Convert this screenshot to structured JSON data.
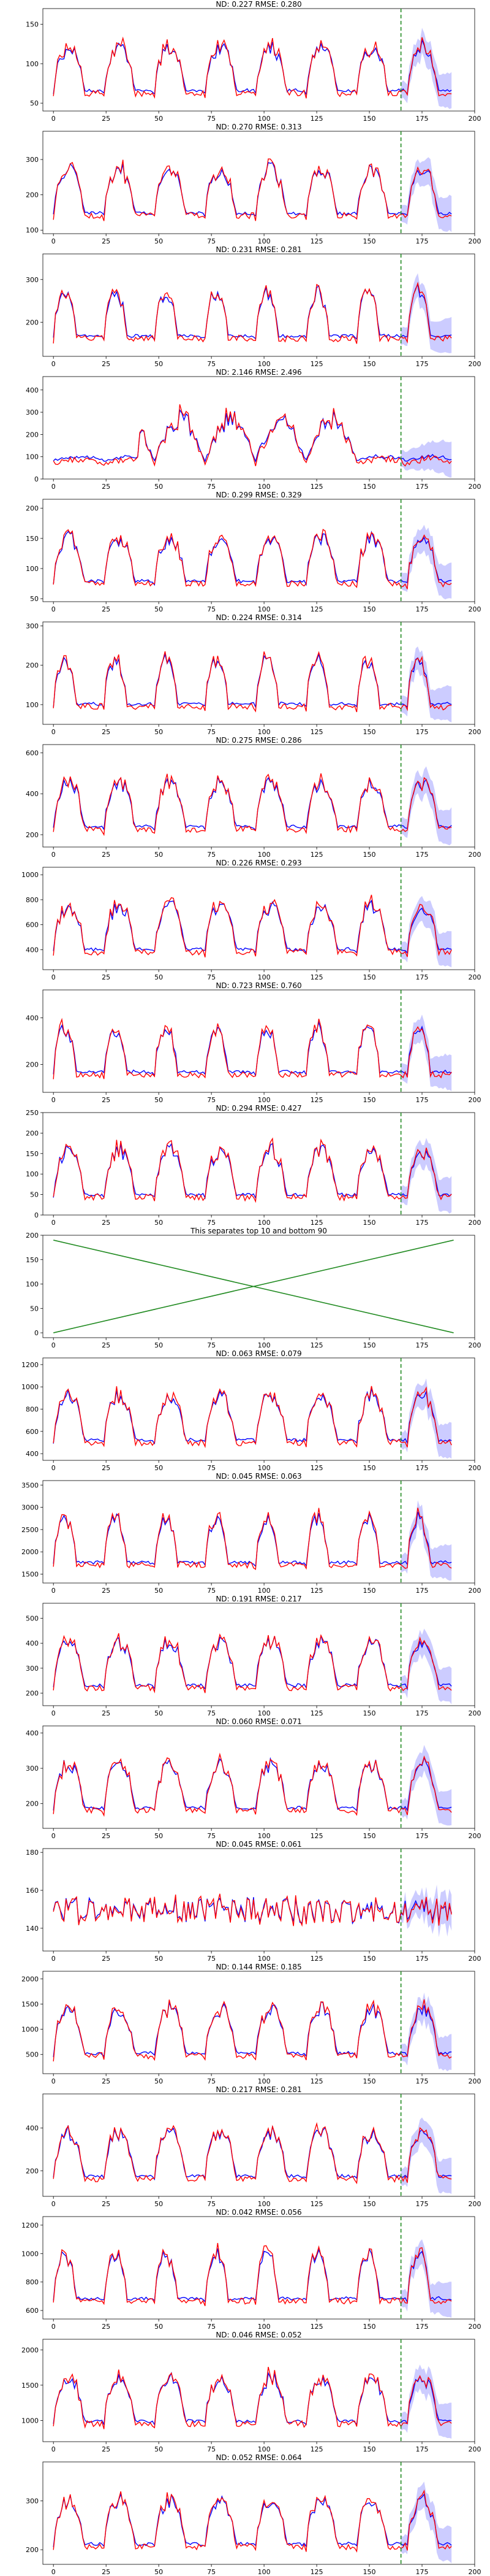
{
  "figure": {
    "x_ticks": [
      0,
      25,
      50,
      75,
      100,
      125,
      150,
      175,
      200
    ],
    "forecast_start": 165,
    "series_colors": {
      "prediction": "#0000ff",
      "actual": "#ff0000",
      "interval": "#aaaaff",
      "forecast_marker": "#228b22",
      "separator": "#228b22"
    }
  },
  "chart_data": [
    {
      "type": "line",
      "title": "ND:  0.227 RMSE:  0.280",
      "xlim": [
        -5,
        200
      ],
      "ylim": [
        40,
        170
      ],
      "yticks": [
        50,
        100,
        150
      ],
      "profile": 1
    },
    {
      "type": "line",
      "title": "ND:  0.270 RMSE:  0.313",
      "xlim": [
        -5,
        200
      ],
      "ylim": [
        90,
        380
      ],
      "yticks": [
        100,
        200,
        300
      ],
      "profile": 2
    },
    {
      "type": "line",
      "title": "ND:  0.231 RMSE:  0.281",
      "xlim": [
        -5,
        200
      ],
      "ylim": [
        120,
        360
      ],
      "yticks": [
        200,
        300
      ],
      "profile": 3
    },
    {
      "type": "line",
      "title": "ND:  2.146 RMSE:  2.496",
      "xlim": [
        -5,
        200
      ],
      "ylim": [
        0,
        460
      ],
      "yticks": [
        0,
        100,
        200,
        300,
        400
      ],
      "profile": 4
    },
    {
      "type": "line",
      "title": "ND:  0.299 RMSE:  0.329",
      "xlim": [
        -5,
        200
      ],
      "ylim": [
        45,
        215
      ],
      "yticks": [
        50,
        100,
        150,
        200
      ],
      "profile": 5
    },
    {
      "type": "line",
      "title": "ND:  0.224 RMSE:  0.314",
      "xlim": [
        -5,
        200
      ],
      "ylim": [
        50,
        310
      ],
      "yticks": [
        100,
        200,
        300
      ],
      "profile": 6
    },
    {
      "type": "line",
      "title": "ND:  0.275 RMSE:  0.286",
      "xlim": [
        -5,
        200
      ],
      "ylim": [
        140,
        640
      ],
      "yticks": [
        200,
        400,
        600
      ],
      "profile": 7
    },
    {
      "type": "line",
      "title": "ND:  0.226 RMSE:  0.293",
      "xlim": [
        -5,
        200
      ],
      "ylim": [
        240,
        1060
      ],
      "yticks": [
        400,
        600,
        800,
        1000
      ],
      "profile": 8
    },
    {
      "type": "line",
      "title": "ND:  0.723 RMSE:  0.760",
      "xlim": [
        -5,
        200
      ],
      "ylim": [
        80,
        520
      ],
      "yticks": [
        200,
        400
      ],
      "profile": 9
    },
    {
      "type": "line",
      "title": "ND:  0.294 RMSE:  0.427",
      "xlim": [
        -5,
        200
      ],
      "ylim": [
        0,
        250
      ],
      "yticks": [
        0,
        50,
        100,
        150,
        200,
        250
      ],
      "profile": 10
    },
    {
      "type": "line",
      "title": "This separates top 10 and bottom 90",
      "xlim": [
        -5,
        200
      ],
      "ylim": [
        -10,
        200
      ],
      "yticks": [
        0,
        50,
        100,
        150,
        200
      ],
      "separator": true
    },
    {
      "type": "line",
      "title": "ND:  0.063 RMSE:  0.079",
      "xlim": [
        -5,
        200
      ],
      "ylim": [
        340,
        1260
      ],
      "yticks": [
        400,
        600,
        800,
        1000,
        1200
      ],
      "profile": 11
    },
    {
      "type": "line",
      "title": "ND:  0.045 RMSE:  0.063",
      "xlim": [
        -5,
        200
      ],
      "ylim": [
        1300,
        3600
      ],
      "yticks": [
        1500,
        2000,
        2500,
        3000,
        3500
      ],
      "profile": 12
    },
    {
      "type": "line",
      "title": "ND:  0.191 RMSE:  0.217",
      "xlim": [
        -5,
        200
      ],
      "ylim": [
        150,
        560
      ],
      "yticks": [
        200,
        300,
        400,
        500
      ],
      "profile": 13
    },
    {
      "type": "line",
      "title": "ND:  0.060 RMSE:  0.071",
      "xlim": [
        -5,
        200
      ],
      "ylim": [
        130,
        420
      ],
      "yticks": [
        200,
        300,
        400
      ],
      "profile": 14
    },
    {
      "type": "line",
      "title": "ND:  0.045 RMSE:  0.061",
      "xlim": [
        -5,
        200
      ],
      "ylim": [
        128,
        182
      ],
      "yticks": [
        140,
        160,
        180
      ],
      "profile": 15
    },
    {
      "type": "line",
      "title": "ND:  0.144 RMSE:  0.185",
      "xlim": [
        -5,
        200
      ],
      "ylim": [
        120,
        2150
      ],
      "yticks": [
        500,
        1000,
        1500,
        2000
      ],
      "profile": 16
    },
    {
      "type": "line",
      "title": "ND:  0.217 RMSE:  0.281",
      "xlim": [
        -5,
        200
      ],
      "ylim": [
        80,
        560
      ],
      "yticks": [
        200,
        400
      ],
      "profile": 17
    },
    {
      "type": "line",
      "title": "ND:  0.042 RMSE:  0.056",
      "xlim": [
        -5,
        200
      ],
      "ylim": [
        540,
        1260
      ],
      "yticks": [
        600,
        800,
        1000,
        1200
      ],
      "profile": 18
    },
    {
      "type": "line",
      "title": "ND:  0.046 RMSE:  0.052",
      "xlim": [
        -5,
        200
      ],
      "ylim": [
        700,
        2150
      ],
      "yticks": [
        1000,
        1500,
        2000
      ],
      "profile": 19
    },
    {
      "type": "line",
      "title": "ND:  0.052 RMSE:  0.064",
      "xlim": [
        -5,
        200
      ],
      "ylim": [
        170,
        380
      ],
      "yticks": [
        200,
        300
      ],
      "profile": 20
    }
  ]
}
